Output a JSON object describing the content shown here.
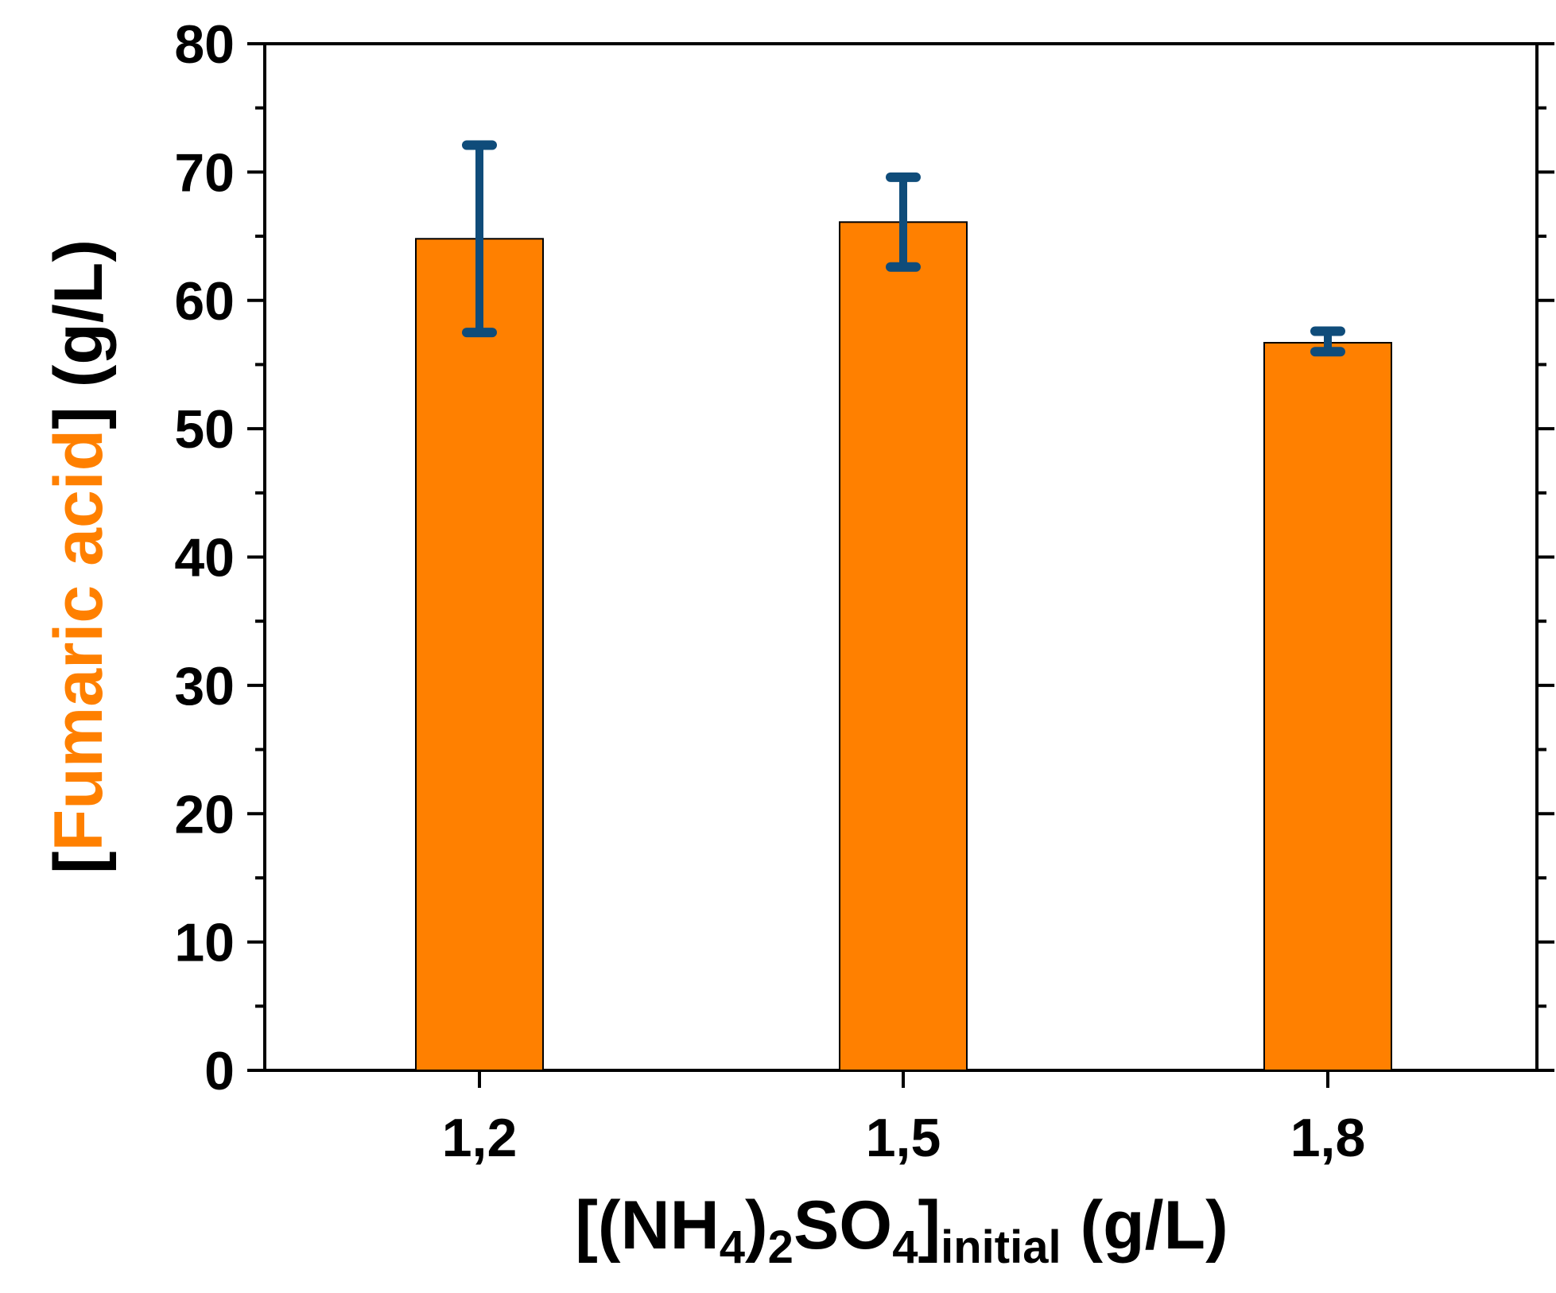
{
  "chart_data": {
    "type": "bar",
    "categories": [
      "1,2",
      "1,5",
      "1,8"
    ],
    "series": [
      {
        "name": "Fumaric acid",
        "values": [
          64.8,
          66.1,
          56.7
        ],
        "error_low": [
          57.5,
          62.6,
          56.0
        ],
        "error_high": [
          72.1,
          69.6,
          57.6
        ],
        "color": "#FF8000",
        "error_color": "#0F4C7A"
      }
    ],
    "ylim": [
      0,
      80
    ],
    "yticks": [
      "0",
      "10",
      "20",
      "30",
      "40",
      "50",
      "60",
      "70",
      "80"
    ],
    "ylabel": {
      "open_bracket": "[",
      "analyte": "Fumaric acid",
      "close_and_unit": "] (g/L)",
      "analyte_color": "#FF8000"
    },
    "xlabel": {
      "open": "[(NH",
      "sub1": "4",
      "mid1": ")",
      "sub2": "2",
      "mid2": "SO",
      "sub3": "4",
      "close": "]",
      "sub4": "initial",
      "unit": " (g/L)"
    },
    "legend": "none",
    "grid": false
  }
}
